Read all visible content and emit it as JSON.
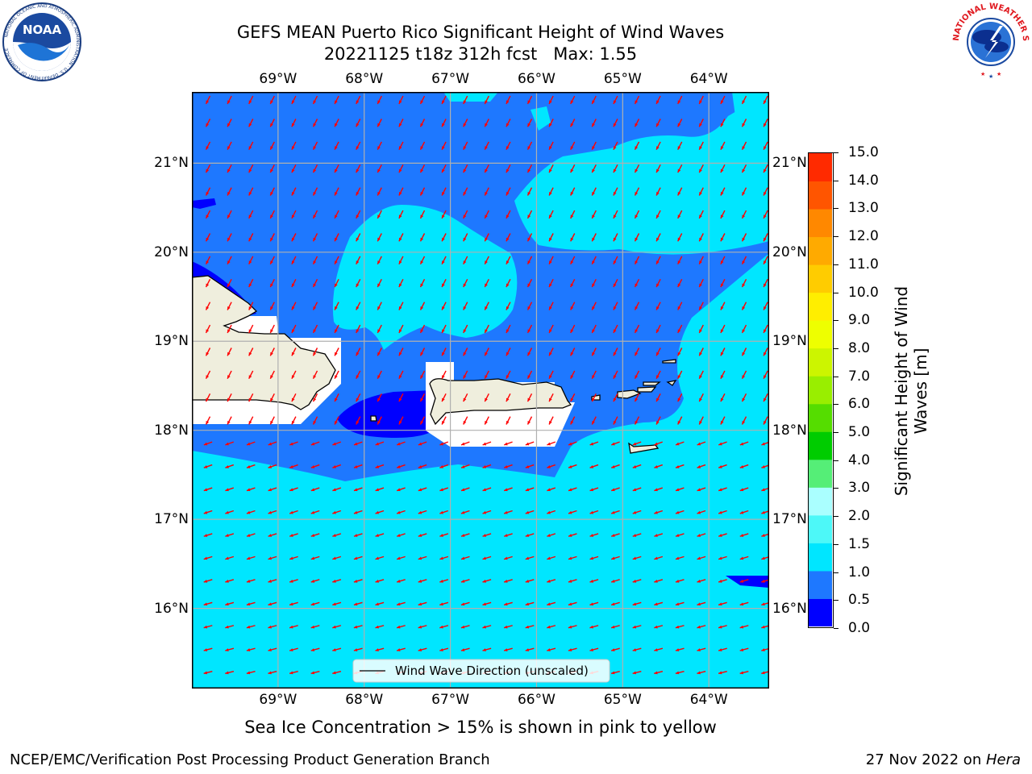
{
  "title": {
    "line1": "GEFS MEAN Puerto Rico Significant Height of Wind Waves",
    "line2": "20221125 t18z 312h fcst   Max: 1.55"
  },
  "logos": {
    "left": {
      "name": "noaa-logo",
      "text": "NOAA",
      "ring_text": "NATIONAL OCEANIC AND ATMOSPHERIC ADMINISTRATION · U.S. DEPARTMENT OF COMMERCE"
    },
    "right": {
      "name": "nws-logo",
      "ring_text": "NATIONAL WEATHER SERVICE"
    }
  },
  "map": {
    "lon_range": [
      -70.0,
      -63.3
    ],
    "lat_range": [
      15.1,
      21.8
    ],
    "lon_ticks": [
      "69°W",
      "68°W",
      "67°W",
      "66°W",
      "65°W",
      "64°W"
    ],
    "lat_ticks": [
      "21°N",
      "20°N",
      "19°N",
      "18°N",
      "17°N",
      "16°N"
    ],
    "grid": true,
    "colors": {
      "land": "#efeedd",
      "white_mask": "#ffffff",
      "level_0": "#0000ff",
      "level_0_5": "#1e78ff",
      "level_1_0": "#00e6ff",
      "arrow": "#ff0000",
      "grid": "#b0b0b0"
    },
    "legend_label": "Wind Wave Direction (unscaled)"
  },
  "colorbar": {
    "label_line1": "Significant Height of Wind",
    "label_line2": "Waves [m]",
    "ticks": [
      "0.0",
      "0.5",
      "1.0",
      "1.5",
      "2.0",
      "3.0",
      "4.0",
      "5.0",
      "6.0",
      "7.0",
      "8.0",
      "9.0",
      "10.0",
      "11.0",
      "12.0",
      "13.0",
      "14.0",
      "15.0"
    ],
    "colors": [
      "#0000ff",
      "#1e78ff",
      "#00e6ff",
      "#4df8f8",
      "#aaffff",
      "#55ee77",
      "#00cc00",
      "#55dd00",
      "#99ee00",
      "#ccf500",
      "#eeff00",
      "#ffee00",
      "#ffcc00",
      "#ffaa00",
      "#ff8800",
      "#ff5500",
      "#ff2a00",
      "#ff0000"
    ]
  },
  "ice_note": "Sea Ice Concentration > 15% is shown in pink to yellow",
  "footer": {
    "left": "NCEP/EMC/Verification Post Processing Product Generation Branch",
    "right_prefix": "27 Nov 2022 on ",
    "right_host": "Hera"
  }
}
